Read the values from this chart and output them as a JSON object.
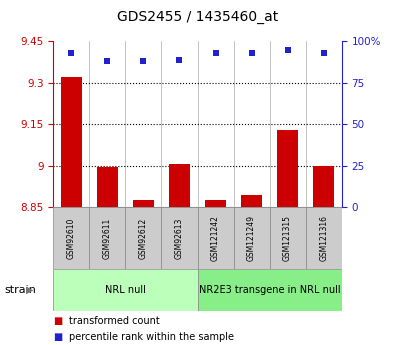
{
  "title": "GDS2455 / 1435460_at",
  "samples": [
    "GSM92610",
    "GSM92611",
    "GSM92612",
    "GSM92613",
    "GSM121242",
    "GSM121249",
    "GSM121315",
    "GSM121316"
  ],
  "transformed_counts": [
    9.32,
    8.995,
    8.875,
    9.005,
    8.877,
    8.895,
    9.13,
    9.0
  ],
  "percentile_ranks": [
    93,
    88,
    88,
    89,
    93,
    93,
    95,
    93
  ],
  "ymin": 8.85,
  "ymax": 9.45,
  "yticks": [
    8.85,
    9.0,
    9.15,
    9.3,
    9.45
  ],
  "ytick_labels": [
    "8.85",
    "9",
    "9.15",
    "9.3",
    "9.45"
  ],
  "right_yticks": [
    0,
    25,
    50,
    75,
    100
  ],
  "right_ytick_labels": [
    "0",
    "25",
    "50",
    "75",
    "100%"
  ],
  "dotted_lines": [
    9.0,
    9.15,
    9.3
  ],
  "bar_color": "#cc0000",
  "dot_color": "#2222cc",
  "bar_baseline": 8.85,
  "groups": [
    {
      "label": "NRL null",
      "start": 0,
      "end": 4,
      "color": "#bbffbb"
    },
    {
      "label": "NR2E3 transgene in NRL null",
      "start": 4,
      "end": 8,
      "color": "#88ee88"
    }
  ],
  "strain_label": "strain",
  "legend_items": [
    {
      "color": "#cc0000",
      "label": "transformed count"
    },
    {
      "color": "#2222cc",
      "label": "percentile rank within the sample"
    }
  ],
  "left_axis_color": "#cc0000",
  "right_axis_color": "#2222cc",
  "sample_box_color": "#cccccc",
  "title_fontsize": 10,
  "tick_fontsize": 7.5,
  "label_fontsize": 5.5,
  "legend_fontsize": 7,
  "group_fontsize": 7
}
